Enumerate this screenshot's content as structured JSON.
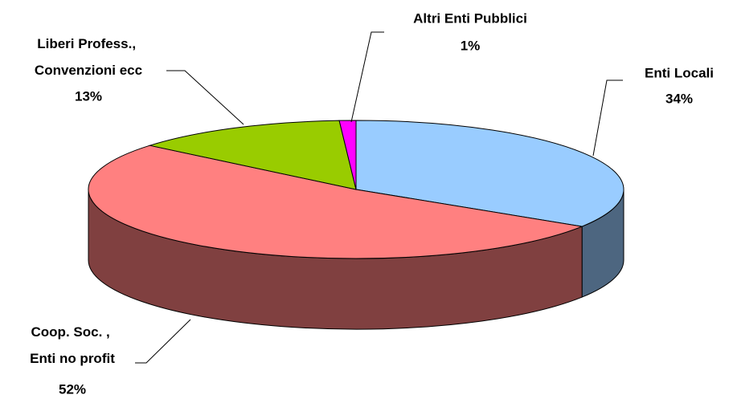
{
  "chart_data": {
    "type": "pie3d",
    "categories": [
      "Enti Locali",
      "Coop. Soc. ,\nEnti no profit",
      "Liberi Profess.,\nConvenzioni ecc",
      "Altri Enti Pubblici"
    ],
    "values": [
      34,
      52,
      13,
      1
    ],
    "value_labels": [
      "34%",
      "52%",
      "13%",
      "1%"
    ],
    "colors": [
      "#99ccff",
      "#ff8080",
      "#99cc00",
      "#ff00ff"
    ]
  }
}
